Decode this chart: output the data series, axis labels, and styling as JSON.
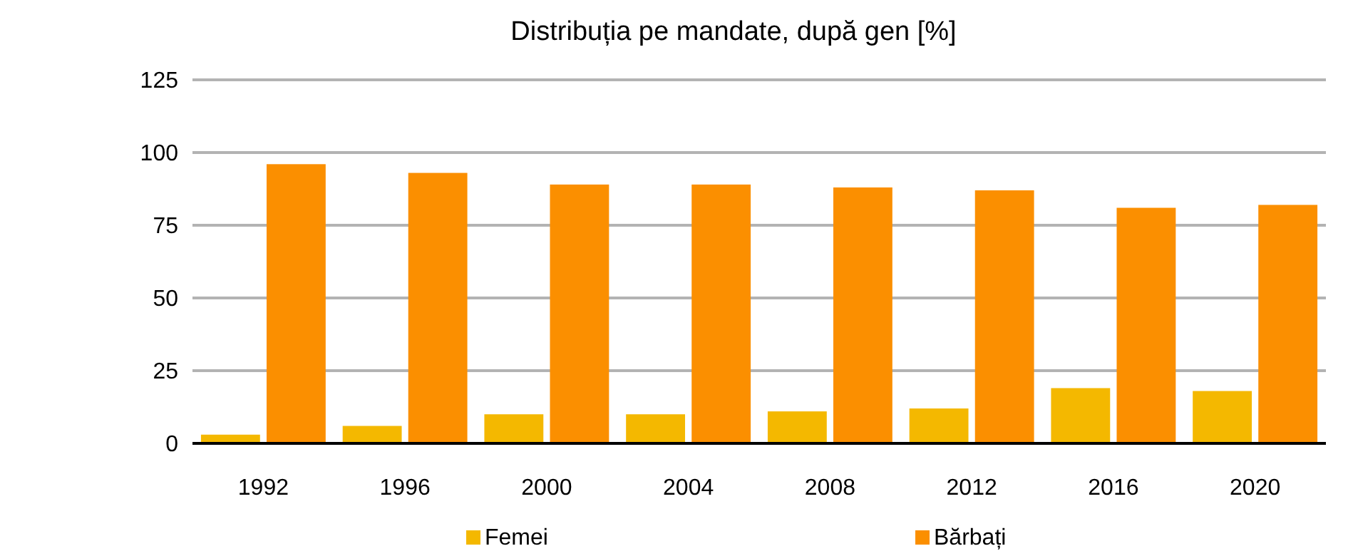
{
  "chart_data": {
    "type": "bar",
    "title": "Distribuția pe mandate, după gen [%]",
    "categories": [
      "1992",
      "1996",
      "2000",
      "2004",
      "2008",
      "2012",
      "2016",
      "2020"
    ],
    "series": [
      {
        "name": "Femei",
        "color": "#f4b800",
        "values": [
          3,
          6,
          10,
          10,
          11,
          12,
          19,
          18
        ]
      },
      {
        "name": "Bărbați",
        "color": "#fb8f00",
        "values": [
          96,
          93,
          89,
          89,
          88,
          87,
          81,
          82
        ]
      }
    ],
    "ylim": [
      0,
      125
    ],
    "yticks": [
      0,
      25,
      50,
      75,
      100,
      125
    ],
    "grid": "y",
    "legend": "bottom"
  }
}
